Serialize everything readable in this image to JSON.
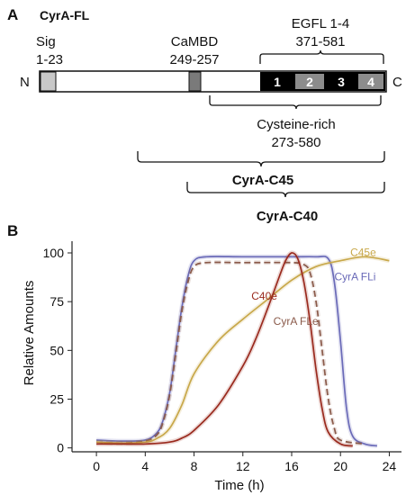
{
  "panel_a": {
    "letter": "A",
    "title": "CyrA-FL",
    "sig_label": "Sig",
    "sig_range": "1-23",
    "cambd_label": "CaMBD",
    "cambd_range": "249-257",
    "egfl_label": "EGFL 1-4",
    "egfl_range": "371-581",
    "n_term": "N",
    "c_term": "C",
    "egfl_numbers": [
      "1",
      "2",
      "3",
      "4"
    ],
    "cys_label": "Cysteine-rich",
    "cys_range": "273-580",
    "c45_label": "CyrA-C45",
    "c40_label": "CyrA-C40"
  },
  "panel_b": {
    "letter": "B",
    "xlabel": "Time (h)",
    "ylabel": "Relative Amounts"
  },
  "colors": {
    "c45e": "#c8a84a",
    "cyra_fli": "#6a6ab8",
    "c40e": "#9a2a1e",
    "cyra_fle": "#8a5a4a"
  },
  "chart_data": {
    "type": "line",
    "xlabel": "Time (h)",
    "ylabel": "Relative Amounts",
    "xlim": [
      -2,
      25
    ],
    "ylim": [
      -2,
      106
    ],
    "xticks": [
      0,
      4,
      8,
      12,
      16,
      20,
      24
    ],
    "yticks": [
      0,
      25,
      50,
      75,
      100
    ],
    "series": [
      {
        "name": "CyrA FLi",
        "color": "#6a6ab8",
        "dash": "none",
        "x": [
          0,
          2,
          4,
          5,
          5.5,
          6,
          6.5,
          7,
          7.5,
          8,
          9,
          12,
          16,
          18,
          19,
          19.5,
          20,
          20.5,
          21,
          22,
          23
        ],
        "y": [
          4,
          3.5,
          4,
          8,
          15,
          28,
          50,
          72,
          88,
          96,
          98,
          98,
          98,
          98,
          97,
          85,
          55,
          20,
          6,
          2,
          1
        ]
      },
      {
        "name": "CyrA FLe",
        "color": "#8a5a4a",
        "dash": "7,4",
        "x": [
          0,
          2,
          4,
          5,
          5.5,
          6,
          6.5,
          7,
          7.5,
          8,
          9,
          12,
          16,
          17,
          17.5,
          18,
          18.5,
          19,
          19.5,
          20,
          22
        ],
        "y": [
          3,
          2.5,
          3.5,
          7,
          14,
          27,
          48,
          70,
          85,
          93,
          95,
          95,
          95,
          94,
          90,
          75,
          50,
          25,
          10,
          4,
          2
        ]
      },
      {
        "name": "C45e",
        "color": "#c8a84a",
        "dash": "none",
        "x": [
          0,
          2,
          4,
          5,
          6,
          7,
          8,
          10,
          12,
          14,
          16,
          18,
          20,
          22,
          24
        ],
        "y": [
          3,
          2.5,
          3,
          5,
          10,
          22,
          38,
          55,
          66,
          76,
          86,
          93,
          96,
          98,
          96
        ]
      },
      {
        "name": "C40e",
        "color": "#9a2a1e",
        "dash": "none",
        "x": [
          0,
          2,
          4,
          6,
          7,
          8,
          10,
          12,
          13,
          14,
          15,
          15.5,
          16,
          16.5,
          17,
          17.5,
          18,
          18.5,
          19,
          20,
          21
        ],
        "y": [
          2,
          2,
          2,
          3,
          5,
          9,
          22,
          42,
          55,
          71,
          88,
          96,
          100,
          97,
          85,
          65,
          40,
          20,
          8,
          2,
          1
        ]
      }
    ]
  }
}
